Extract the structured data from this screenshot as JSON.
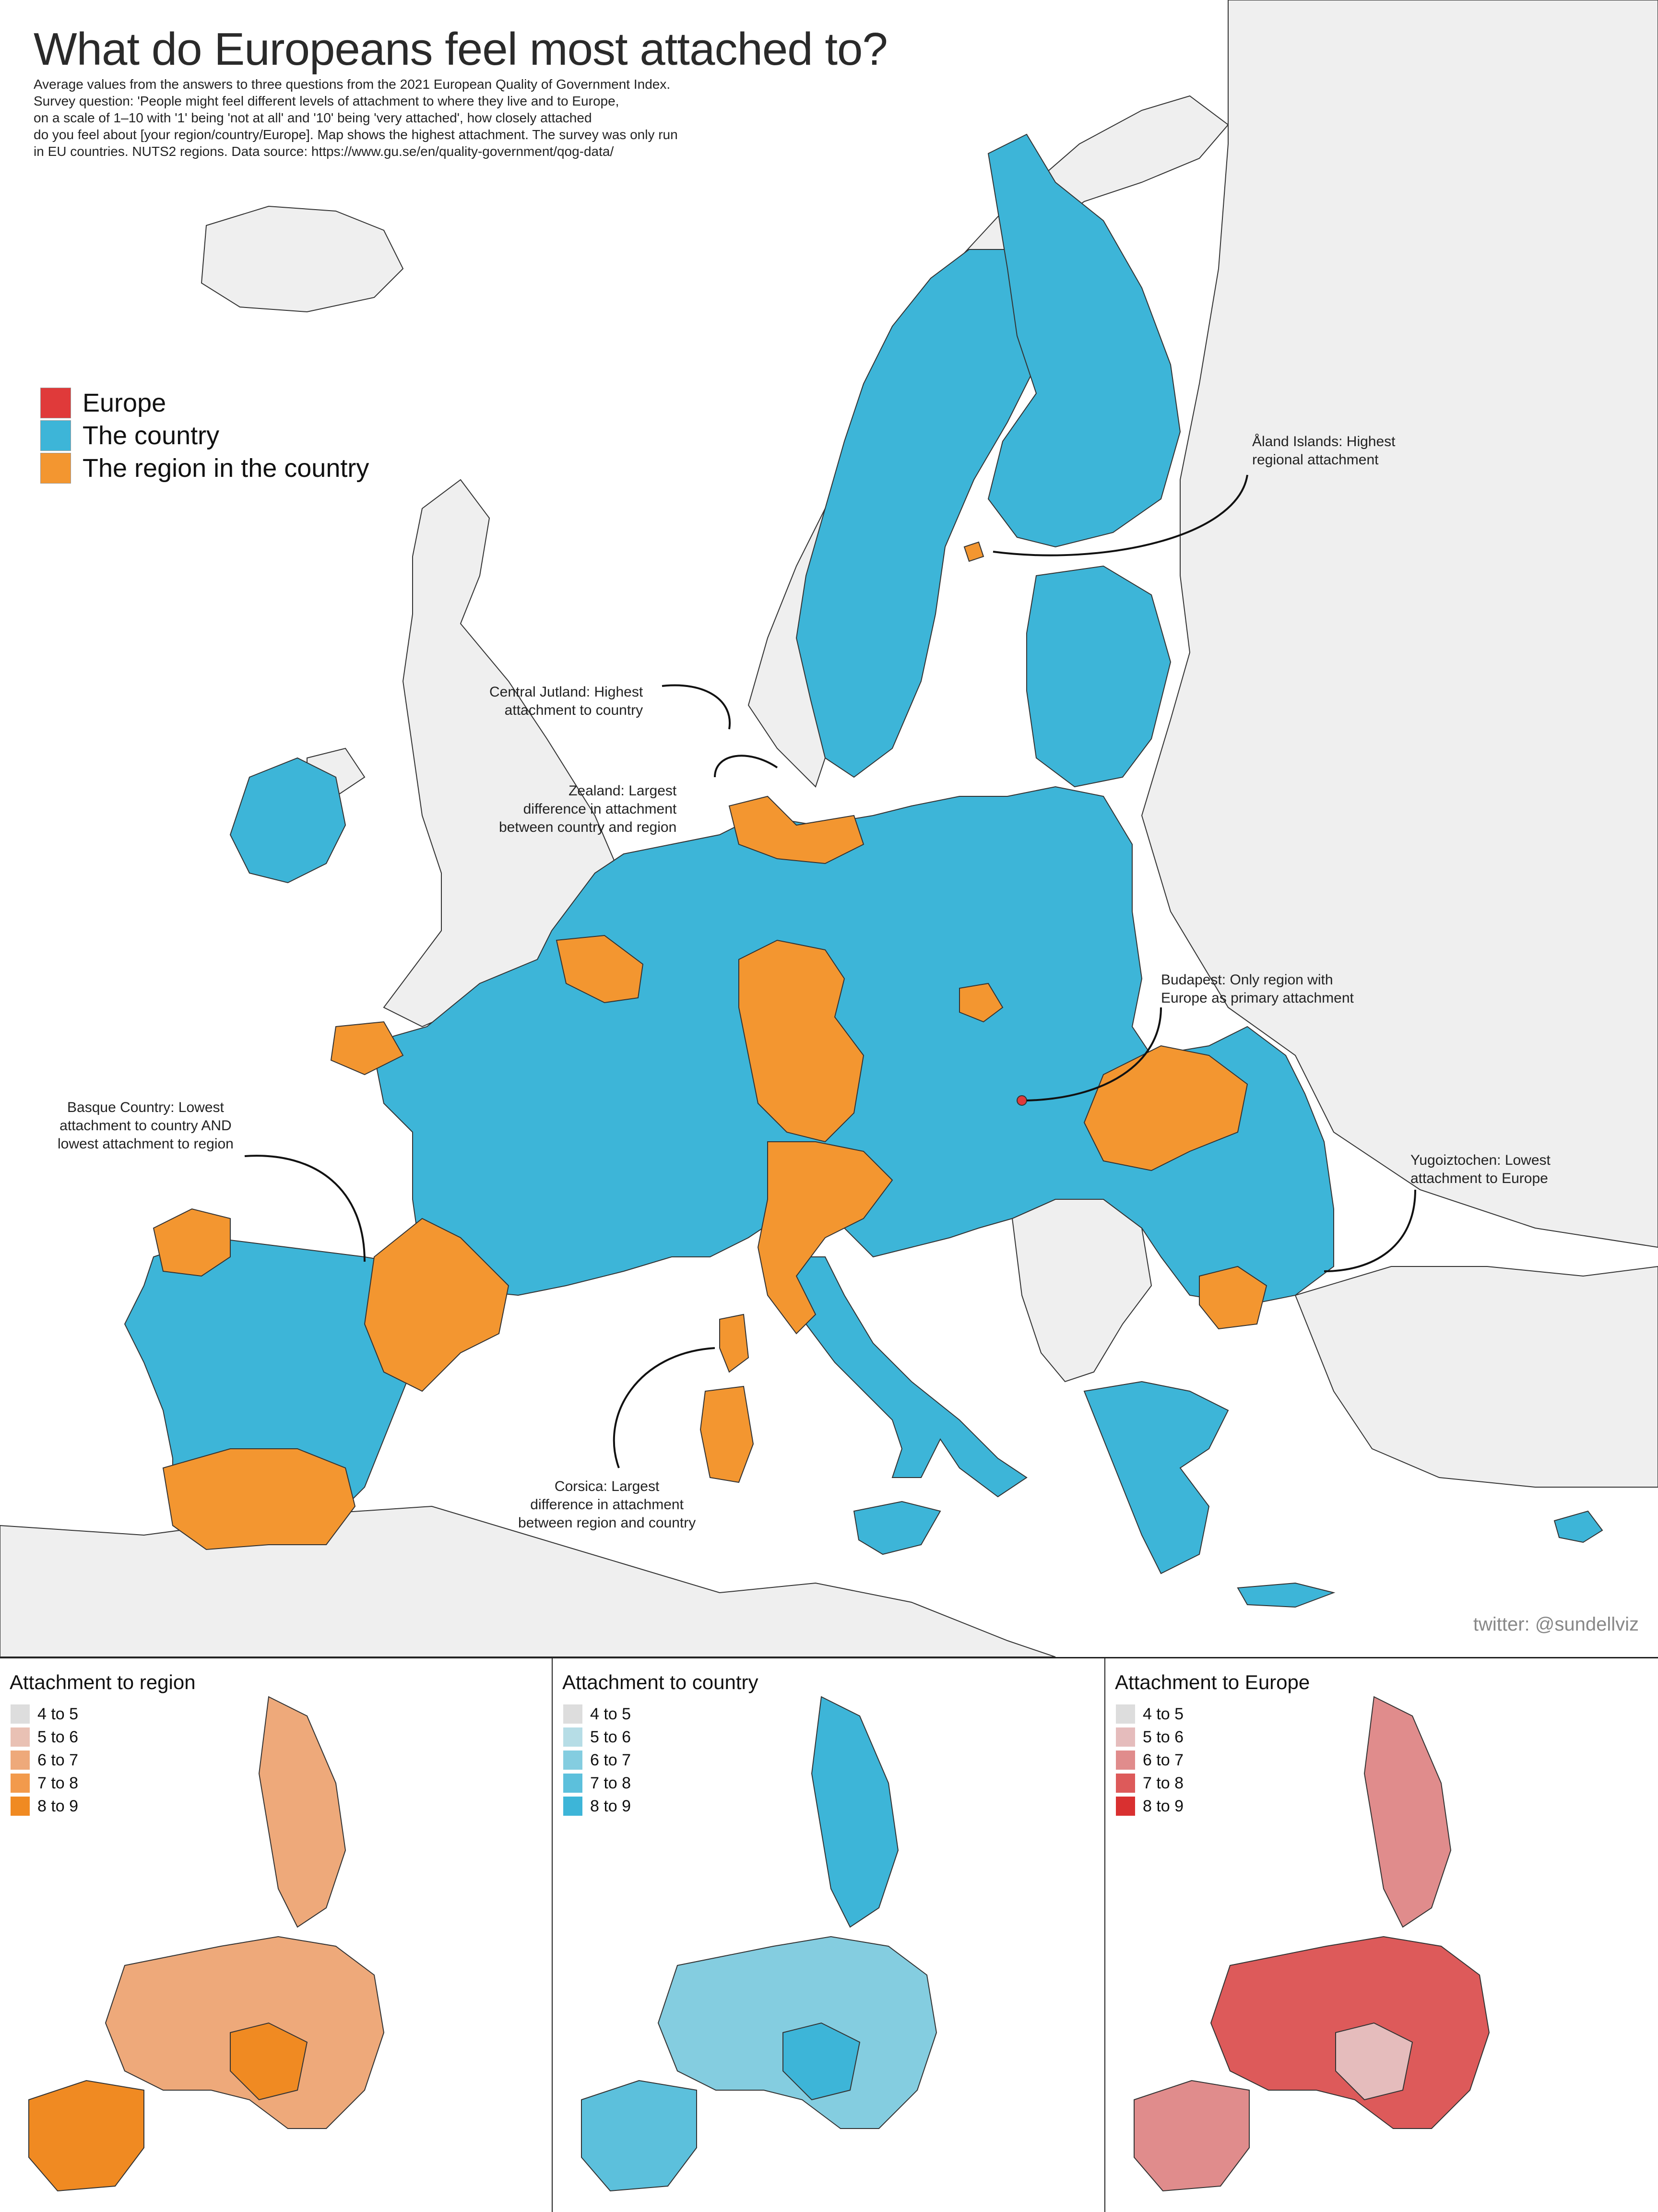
{
  "title": "What do Europeans feel most attached to?",
  "subtitle_lines": [
    "Average values from the answers to three questions from the 2021 European Quality of Government Index.",
    "Survey question: 'People might feel different levels of attachment to where they live and to Europe,",
    "on a scale of 1–10 with '1' being 'not at all' and '10' being 'very attached', how closely attached",
    "do you feel about [your region/country/Europe]. Map shows the highest attachment. The survey was only run",
    "in EU countries. NUTS2 regions. Data source: https://www.gu.se/en/quality-government/qog-data/"
  ],
  "legend": [
    {
      "label": "Europe",
      "color": "#e03a3a"
    },
    {
      "label": "The country",
      "color": "#3db5d8"
    },
    {
      "label": "The region in the country",
      "color": "#f39630"
    }
  ],
  "annotations": {
    "aland": [
      "Åland Islands: Highest",
      "regional attachment"
    ],
    "jutland": [
      "Central Jutland: Highest",
      "attachment to country"
    ],
    "zealand": [
      "Zealand: Largest",
      "difference in attachment",
      "between country and region"
    ],
    "budapest": [
      "Budapest: Only region with",
      "Europe as primary attachment"
    ],
    "basque": [
      "Basque Country: Lowest",
      "attachment to country AND",
      "lowest attachment to region"
    ],
    "yugoiztochen": [
      "Yugoiztochen: Lowest",
      "attachment to Europe"
    ],
    "corsica": [
      "Corsica: Largest",
      "difference in attachment",
      "between region and country"
    ]
  },
  "credit": "twitter: @sundellviz",
  "colors": {
    "sea": "#ffffff",
    "non_eu_land": "#efefef",
    "country": "#3db5d8",
    "region": "#f39630",
    "europe": "#e03a3a"
  },
  "panels": [
    {
      "title": "Attachment to region",
      "legend": [
        {
          "label": "4 to 5",
          "color": "#dddddd"
        },
        {
          "label": "5 to 6",
          "color": "#e9c1b4"
        },
        {
          "label": "6 to 7",
          "color": "#eea97a"
        },
        {
          "label": "7 to 8",
          "color": "#f29a4c"
        },
        {
          "label": "8 to 9",
          "color": "#f08a22"
        }
      ]
    },
    {
      "title": "Attachment to country",
      "legend": [
        {
          "label": "4 to 5",
          "color": "#dddddd"
        },
        {
          "label": "5 to 6",
          "color": "#b6dde6"
        },
        {
          "label": "6 to 7",
          "color": "#84cde0"
        },
        {
          "label": "7 to 8",
          "color": "#5cc0dc"
        },
        {
          "label": "8 to 9",
          "color": "#3db5d8"
        }
      ]
    },
    {
      "title": "Attachment to Europe",
      "legend": [
        {
          "label": "4 to 5",
          "color": "#dddddd"
        },
        {
          "label": "5 to 6",
          "color": "#e5bcbc"
        },
        {
          "label": "6 to 7",
          "color": "#e08c8c"
        },
        {
          "label": "7 to 8",
          "color": "#dd5a5a"
        },
        {
          "label": "8 to 9",
          "color": "#d93030"
        }
      ]
    }
  ]
}
